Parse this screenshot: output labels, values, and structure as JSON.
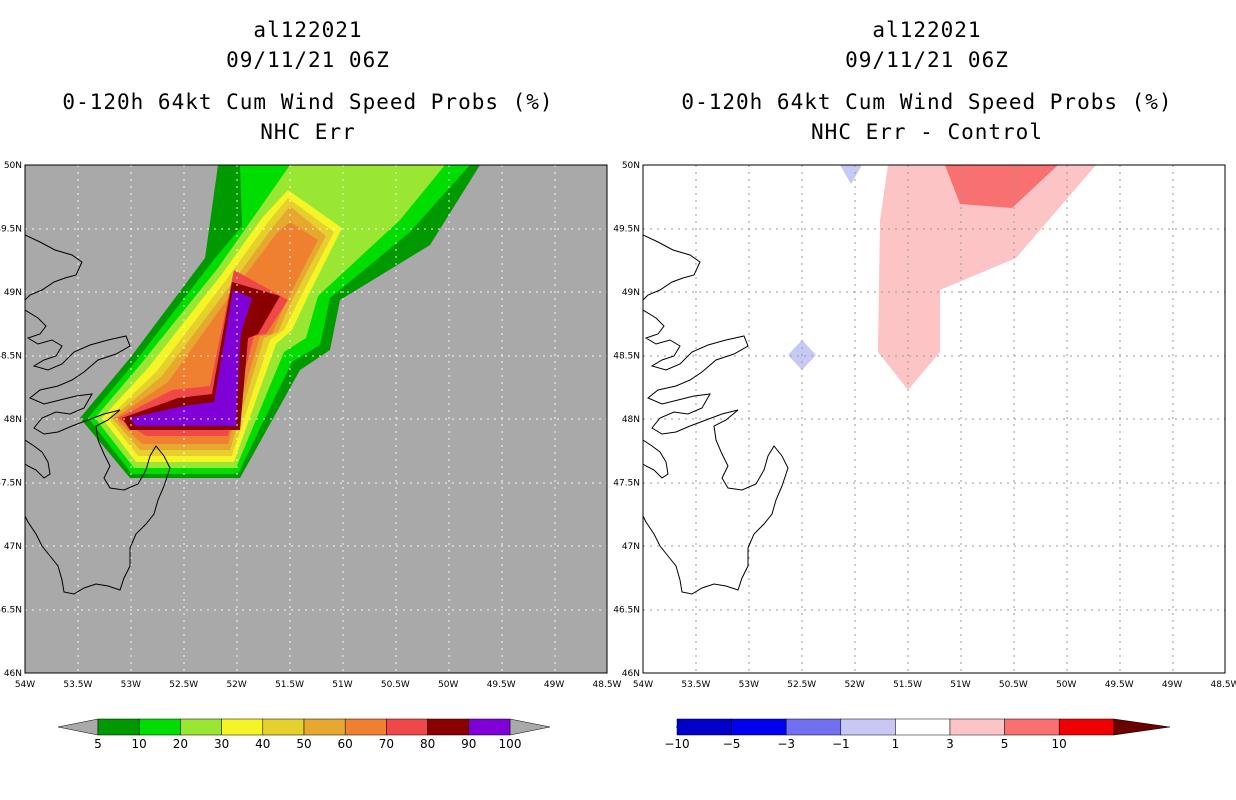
{
  "panels": [
    {
      "title_lines": [
        "al122021",
        "09/11/21 06Z",
        "0-120h 64kt Cum Wind Speed Probs (%)",
        "NHC Err"
      ]
    },
    {
      "title_lines": [
        "al122021",
        "09/11/21 06Z",
        "0-120h 64kt Cum Wind Speed Probs (%)",
        "NHC Err - Control"
      ]
    }
  ],
  "chart_data": [
    {
      "type": "filled-contour-map",
      "title": "0-120h 64kt Cum Wind Speed Probs (%) NHC Err",
      "storm": "al122021",
      "time": "09/11/21 06Z",
      "xlabel": "",
      "ylabel": "",
      "xlim": [
        -54,
        -48.5
      ],
      "ylim": [
        46,
        50
      ],
      "x_ticks": [
        "54W",
        "53.5W",
        "53W",
        "52.5W",
        "52W",
        "51.5W",
        "51W",
        "50.5W",
        "50W",
        "49.5W",
        "49W",
        "48.5W"
      ],
      "y_ticks": [
        "46N",
        "46.5N",
        "47N",
        "47.5N",
        "48N",
        "48.5N",
        "49N",
        "49.5N",
        "50N"
      ],
      "contour_levels": [
        5,
        10,
        20,
        30,
        40,
        50,
        60,
        70,
        80,
        90,
        100
      ],
      "background_color": "#a9a9a9",
      "colorbar": {
        "labels": [
          "5",
          "10",
          "20",
          "30",
          "40",
          "50",
          "60",
          "70",
          "80",
          "90",
          "100"
        ],
        "colors": [
          "#009900",
          "#00dd00",
          "#99e633",
          "#f5f526",
          "#e6d02e",
          "#e6a82e",
          "#ee8030",
          "#f04848",
          "#8a0000",
          "#8000d8"
        ]
      },
      "max_region": {
        "value": 100,
        "approx_center_lon": -52.2,
        "approx_center_lat": 48.3
      }
    },
    {
      "type": "filled-contour-map",
      "title": "0-120h 64kt Cum Wind Speed Probs (%) NHC Err - Control",
      "storm": "al122021",
      "time": "09/11/21 06Z",
      "xlabel": "",
      "ylabel": "",
      "xlim": [
        -54,
        -48.5
      ],
      "ylim": [
        46,
        50
      ],
      "x_ticks": [
        "54W",
        "53.5W",
        "53W",
        "52.5W",
        "52W",
        "51.5W",
        "51W",
        "50.5W",
        "50W",
        "49.5W",
        "49W",
        "48.5W"
      ],
      "y_ticks": [
        "46N",
        "46.5N",
        "47N",
        "47.5N",
        "48N",
        "48.5N",
        "49N",
        "49.5N",
        "50N"
      ],
      "contour_levels": [
        -10,
        -5,
        -3,
        -1,
        1,
        3,
        5,
        10
      ],
      "colorbar": {
        "labels": [
          "-10",
          "-5",
          "-3",
          "-1",
          "1",
          "3",
          "5",
          "10"
        ],
        "colors": [
          "#0000c8",
          "#0000f0",
          "#7070f0",
          "#c8c8f5",
          "#ffffff",
          "#fcc4c4",
          "#f87070",
          "#f00000"
        ]
      },
      "features": [
        {
          "range": "1 to 3",
          "approx_region": "51.8W-51.0W, 48.3N-50N"
        },
        {
          "range": "3 to 5",
          "approx_region": "50.9W-50.0W, 49.7N-50N"
        },
        {
          "range": "-3 to -1",
          "approx_region": "near 52.5W 48.5N and 52W 50N"
        }
      ]
    }
  ]
}
